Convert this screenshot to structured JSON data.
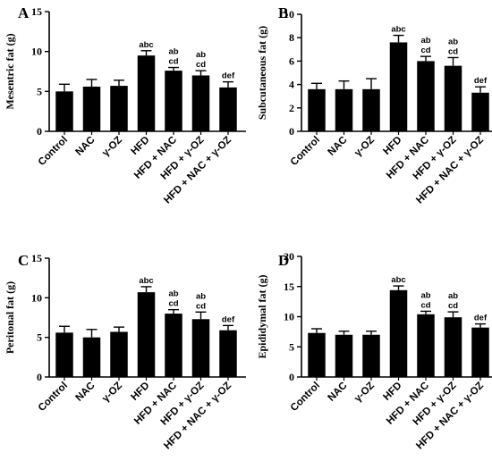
{
  "chart_data": [
    {
      "type": "bar",
      "panel": "A",
      "ylabel": "Mesentric fat (g)",
      "ylim": [
        0,
        15
      ],
      "yticks": [
        0,
        5,
        10,
        15
      ],
      "categories": [
        "Control",
        "NAC",
        "γ-OZ",
        "HFD",
        "HFD + NAC",
        "HFD + γ-OZ",
        "HFD + NAC + γ-OZ"
      ],
      "values": [
        5.0,
        5.6,
        5.7,
        9.5,
        7.6,
        7.0,
        5.5
      ],
      "errors": [
        0.9,
        0.9,
        0.7,
        0.6,
        0.4,
        0.6,
        0.7
      ],
      "annotations": [
        [],
        [],
        [],
        [
          "abc"
        ],
        [
          "ab",
          "cd"
        ],
        [
          "ab",
          "cd"
        ],
        [
          "def"
        ]
      ]
    },
    {
      "type": "bar",
      "panel": "B",
      "ylabel": "Subcutaneous fat (g)",
      "ylim": [
        0,
        10
      ],
      "yticks": [
        0,
        2,
        4,
        6,
        8,
        10
      ],
      "categories": [
        "Control",
        "NAC",
        "γ-OZ",
        "HFD",
        "HFD + NAC",
        "HFD + γ-OZ",
        "HFD + NAC + γ-OZ"
      ],
      "values": [
        3.6,
        3.6,
        3.6,
        7.6,
        6.0,
        5.6,
        3.3
      ],
      "errors": [
        0.5,
        0.7,
        0.9,
        0.6,
        0.4,
        0.7,
        0.5
      ],
      "annotations": [
        [],
        [],
        [],
        [
          "abc"
        ],
        [
          "ab",
          "cd"
        ],
        [
          "ab",
          "cd"
        ],
        [
          "def"
        ]
      ]
    },
    {
      "type": "bar",
      "panel": "C",
      "ylabel": "Peritonal fat (g)",
      "ylim": [
        0,
        15
      ],
      "yticks": [
        0,
        5,
        10,
        15
      ],
      "categories": [
        "Control",
        "NAC",
        "γ-OZ",
        "HFD",
        "HFD + NAC",
        "HFD + γ-OZ",
        "HFD + NAC + γ-OZ"
      ],
      "values": [
        5.6,
        5.0,
        5.7,
        10.7,
        8.0,
        7.3,
        5.9
      ],
      "errors": [
        0.8,
        1.0,
        0.6,
        0.7,
        0.5,
        0.9,
        0.6
      ],
      "annotations": [
        [],
        [],
        [],
        [
          "abc"
        ],
        [
          "ab",
          "cd"
        ],
        [
          "ab",
          "cd"
        ],
        [
          "def"
        ]
      ]
    },
    {
      "type": "bar",
      "panel": "D",
      "ylabel": "Epididymal fat (g)",
      "ylim": [
        0,
        20
      ],
      "yticks": [
        0,
        5,
        10,
        15,
        20
      ],
      "categories": [
        "Control",
        "NAC",
        "γ-OZ",
        "HFD",
        "HFD + NAC",
        "HFD + γ-OZ",
        "HFD + NAC + γ-OZ"
      ],
      "values": [
        7.3,
        7.0,
        7.0,
        14.4,
        10.4,
        9.9,
        8.2
      ],
      "errors": [
        0.7,
        0.6,
        0.6,
        0.7,
        0.5,
        0.9,
        0.6
      ],
      "annotations": [
        [],
        [],
        [],
        [
          "abc"
        ],
        [
          "ab",
          "cd"
        ],
        [
          "ab",
          "cd"
        ],
        [
          "def"
        ]
      ]
    }
  ]
}
